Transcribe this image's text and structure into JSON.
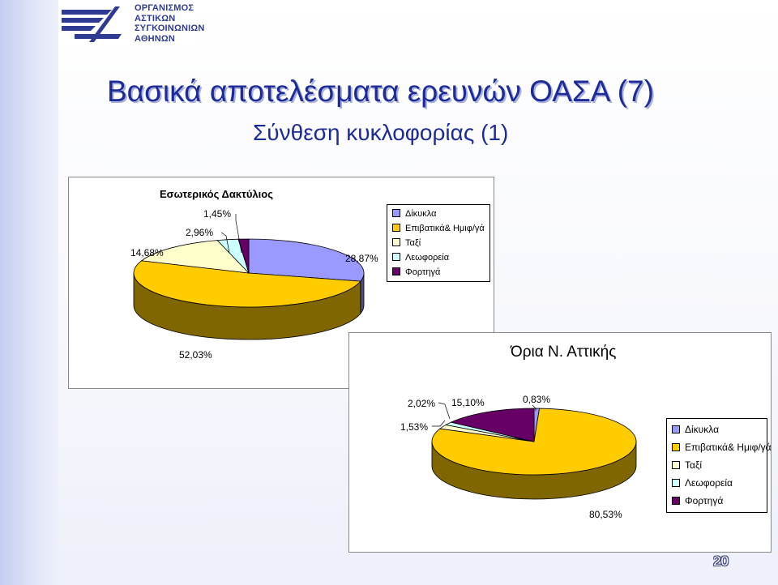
{
  "logo": {
    "lines": [
      "ΟΡΓΑΝΙΣΜΟΣ",
      "ΑΣΤΙΚΩΝ",
      "ΣΥΓΚΟΙΝΩΝΙΩΝ",
      "ΑΘΗΝΩΝ"
    ],
    "color": "#2f3a93"
  },
  "slide": {
    "title": "Βασικά αποτελέσματα ερευνών ΟΑΣΑ (7)",
    "subtitle": "Σύνθεση κυκλοφορίας (1)",
    "page_number": "20",
    "title_color": "#1c2b97"
  },
  "chart_data": [
    {
      "type": "pie",
      "title": "Εσωτερικός Δακτύλιος",
      "legend_position": "right",
      "categories": [
        "Δίκυκλα",
        "Επιβατικά& Ημιφ/γά",
        "Ταξί",
        "Λεωφορεία",
        "Φορτηγά"
      ],
      "values": [
        28.87,
        52.03,
        14.68,
        2.96,
        1.45
      ],
      "labels": [
        "28,87%",
        "52,03%",
        "14,68%",
        "2,96%",
        "1,45%"
      ],
      "colors": [
        "#9999ff",
        "#ffcc00",
        "#ffffcc",
        "#ccffff",
        "#660066"
      ]
    },
    {
      "type": "pie",
      "title": "Όρια Ν. Αττικής",
      "legend_position": "right",
      "categories": [
        "Δίκυκλα",
        "Επιβατικά& Ημιφ/γά",
        "Ταξί",
        "Λεωφορεία",
        "Φορτηγά"
      ],
      "values": [
        0.83,
        80.53,
        2.02,
        1.53,
        15.1
      ],
      "labels": [
        "0,83%",
        "80,53%",
        "2,02%",
        "1,53%",
        "15,10%"
      ],
      "colors": [
        "#9999ff",
        "#ffcc00",
        "#ffffcc",
        "#ccffff",
        "#660066"
      ]
    }
  ]
}
